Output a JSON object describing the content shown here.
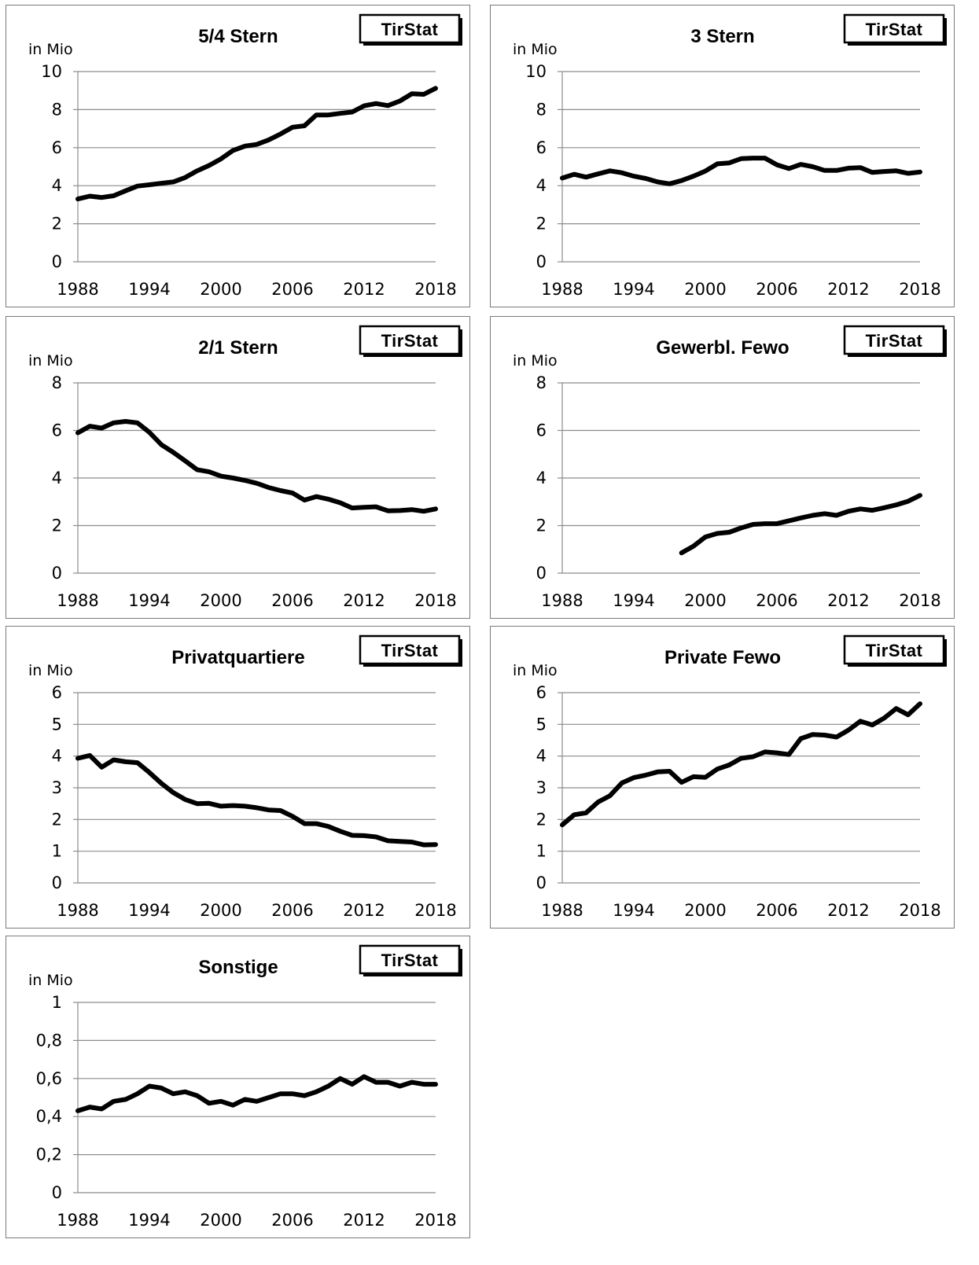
{
  "brand_label": "TirStat",
  "unit_label": "in Mio",
  "colors": {
    "line": "#000000",
    "grid": "#8c8c8c",
    "frame": "#7a7a7a"
  },
  "chart_data": [
    {
      "type": "line",
      "title": "5/4 Stern",
      "ylim": [
        0,
        10
      ],
      "yticks": [
        "0",
        "2",
        "4",
        "6",
        "8",
        "10"
      ],
      "xlim": [
        1988,
        2018
      ],
      "xticks": [
        "1988",
        "1994",
        "2000",
        "2006",
        "2012",
        "2018"
      ],
      "grid": true,
      "x": [
        1988,
        1989,
        1990,
        1991,
        1992,
        1993,
        1994,
        1995,
        1996,
        1997,
        1998,
        1999,
        2000,
        2001,
        2002,
        2003,
        2004,
        2005,
        2006,
        2007,
        2008,
        2009,
        2010,
        2011,
        2012,
        2013,
        2014,
        2015,
        2016,
        2017,
        2018
      ],
      "values": [
        3.3,
        3.45,
        3.38,
        3.47,
        3.73,
        3.98,
        4.05,
        4.13,
        4.2,
        4.43,
        4.78,
        5.06,
        5.41,
        5.85,
        6.08,
        6.17,
        6.41,
        6.72,
        7.07,
        7.15,
        7.72,
        7.72,
        7.8,
        7.87,
        8.2,
        8.32,
        8.21,
        8.45,
        8.83,
        8.8,
        9.12
      ]
    },
    {
      "type": "line",
      "title": "3 Stern",
      "ylim": [
        0,
        10
      ],
      "yticks": [
        "0",
        "2",
        "4",
        "6",
        "8",
        "10"
      ],
      "xlim": [
        1988,
        2018
      ],
      "xticks": [
        "1988",
        "1994",
        "2000",
        "2006",
        "2012",
        "2018"
      ],
      "grid": true,
      "x": [
        1988,
        1989,
        1990,
        1991,
        1992,
        1993,
        1994,
        1995,
        1996,
        1997,
        1998,
        1999,
        2000,
        2001,
        2002,
        2003,
        2004,
        2005,
        2006,
        2007,
        2008,
        2009,
        2010,
        2011,
        2012,
        2013,
        2014,
        2015,
        2016,
        2017,
        2018
      ],
      "values": [
        4.4,
        4.6,
        4.45,
        4.62,
        4.78,
        4.68,
        4.5,
        4.38,
        4.2,
        4.1,
        4.27,
        4.5,
        4.77,
        5.15,
        5.2,
        5.42,
        5.45,
        5.45,
        5.1,
        4.9,
        5.12,
        5.0,
        4.8,
        4.8,
        4.92,
        4.95,
        4.7,
        4.75,
        4.78,
        4.65,
        4.72
      ]
    },
    {
      "type": "line",
      "title": "2/1 Stern",
      "ylim": [
        0,
        8
      ],
      "yticks": [
        "0",
        "2",
        "4",
        "6",
        "8"
      ],
      "xlim": [
        1988,
        2018
      ],
      "xticks": [
        "1988",
        "1994",
        "2000",
        "2006",
        "2012",
        "2018"
      ],
      "grid": true,
      "x": [
        1988,
        1989,
        1990,
        1991,
        1992,
        1993,
        1994,
        1995,
        1996,
        1997,
        1998,
        1999,
        2000,
        2001,
        2002,
        2003,
        2004,
        2005,
        2006,
        2007,
        2008,
        2009,
        2010,
        2011,
        2012,
        2013,
        2014,
        2015,
        2016,
        2017,
        2018
      ],
      "values": [
        5.9,
        6.18,
        6.1,
        6.32,
        6.38,
        6.32,
        5.92,
        5.4,
        5.08,
        4.72,
        4.35,
        4.26,
        4.08,
        4.0,
        3.9,
        3.78,
        3.6,
        3.47,
        3.37,
        3.07,
        3.22,
        3.11,
        2.96,
        2.74,
        2.77,
        2.79,
        2.62,
        2.63,
        2.67,
        2.6,
        2.7
      ]
    },
    {
      "type": "line",
      "title": "Gewerbl. Fewo",
      "ylim": [
        0,
        8
      ],
      "yticks": [
        "0",
        "2",
        "4",
        "6",
        "8"
      ],
      "xlim": [
        1988,
        2018
      ],
      "xticks": [
        "1988",
        "1994",
        "2000",
        "2006",
        "2012",
        "2018"
      ],
      "grid": true,
      "x": [
        1998,
        1999,
        2000,
        2001,
        2002,
        2003,
        2004,
        2005,
        2006,
        2007,
        2008,
        2009,
        2010,
        2011,
        2012,
        2013,
        2014,
        2015,
        2016,
        2017,
        2018
      ],
      "values": [
        0.85,
        1.13,
        1.52,
        1.67,
        1.72,
        1.9,
        2.05,
        2.08,
        2.08,
        2.2,
        2.32,
        2.43,
        2.5,
        2.43,
        2.6,
        2.7,
        2.64,
        2.75,
        2.87,
        3.02,
        3.27
      ]
    },
    {
      "type": "line",
      "title": "Privatquartiere",
      "ylim": [
        0,
        6
      ],
      "yticks": [
        "0",
        "1",
        "2",
        "3",
        "4",
        "5",
        "6"
      ],
      "xlim": [
        1988,
        2018
      ],
      "xticks": [
        "1988",
        "1994",
        "2000",
        "2006",
        "2012",
        "2018"
      ],
      "grid": true,
      "x": [
        1988,
        1989,
        1990,
        1991,
        1992,
        1993,
        1994,
        1995,
        1996,
        1997,
        1998,
        1999,
        2000,
        2001,
        2002,
        2003,
        2004,
        2005,
        2006,
        2007,
        2008,
        2009,
        2010,
        2011,
        2012,
        2013,
        2014,
        2015,
        2016,
        2017,
        2018
      ],
      "values": [
        3.93,
        4.02,
        3.65,
        3.88,
        3.82,
        3.79,
        3.48,
        3.14,
        2.85,
        2.63,
        2.5,
        2.51,
        2.42,
        2.44,
        2.42,
        2.37,
        2.3,
        2.28,
        2.1,
        1.87,
        1.87,
        1.78,
        1.63,
        1.5,
        1.49,
        1.45,
        1.33,
        1.31,
        1.29,
        1.2,
        1.21
      ]
    },
    {
      "type": "line",
      "title": "Private Fewo",
      "ylim": [
        0,
        6
      ],
      "yticks": [
        "0",
        "1",
        "2",
        "3",
        "4",
        "5",
        "6"
      ],
      "xlim": [
        1988,
        2018
      ],
      "xticks": [
        "1988",
        "1994",
        "2000",
        "2006",
        "2012",
        "2018"
      ],
      "grid": true,
      "x": [
        1988,
        1989,
        1990,
        1991,
        1992,
        1993,
        1994,
        1995,
        1996,
        1997,
        1998,
        1999,
        2000,
        2001,
        2002,
        2003,
        2004,
        2005,
        2006,
        2007,
        2008,
        2009,
        2010,
        2011,
        2012,
        2013,
        2014,
        2015,
        2016,
        2017,
        2018
      ],
      "values": [
        1.83,
        2.15,
        2.21,
        2.55,
        2.75,
        3.15,
        3.32,
        3.4,
        3.5,
        3.52,
        3.17,
        3.35,
        3.33,
        3.59,
        3.72,
        3.93,
        3.98,
        4.13,
        4.1,
        4.05,
        4.55,
        4.68,
        4.66,
        4.6,
        4.82,
        5.1,
        4.98,
        5.2,
        5.5,
        5.3,
        5.65
      ]
    },
    {
      "type": "line",
      "title": "Sonstige",
      "ylim": [
        0,
        1
      ],
      "yticks": [
        "0",
        "0,2",
        "0,4",
        "0,6",
        "0,8",
        "1"
      ],
      "xlim": [
        1988,
        2018
      ],
      "xticks": [
        "1988",
        "1994",
        "2000",
        "2006",
        "2012",
        "2018"
      ],
      "grid": true,
      "x": [
        1988,
        1989,
        1990,
        1991,
        1992,
        1993,
        1994,
        1995,
        1996,
        1997,
        1998,
        1999,
        2000,
        2001,
        2002,
        2003,
        2004,
        2005,
        2006,
        2007,
        2008,
        2009,
        2010,
        2011,
        2012,
        2013,
        2014,
        2015,
        2016,
        2017,
        2018
      ],
      "values": [
        0.43,
        0.45,
        0.44,
        0.48,
        0.49,
        0.52,
        0.56,
        0.55,
        0.52,
        0.53,
        0.51,
        0.47,
        0.48,
        0.46,
        0.49,
        0.48,
        0.5,
        0.52,
        0.52,
        0.51,
        0.53,
        0.56,
        0.6,
        0.57,
        0.61,
        0.58,
        0.58,
        0.56,
        0.58,
        0.57,
        0.57
      ]
    }
  ]
}
